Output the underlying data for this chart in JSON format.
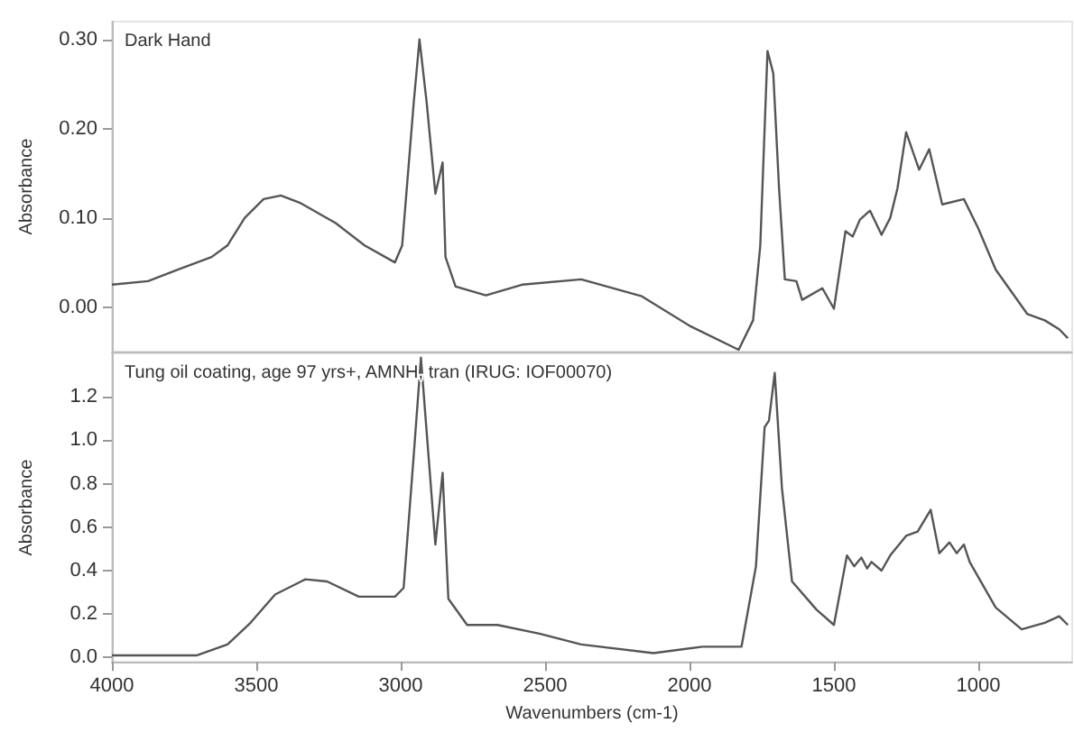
{
  "chart_data": [
    {
      "type": "line",
      "title": "Dark Hand",
      "ylabel": "Absorbance",
      "xlim": [
        4000,
        675
      ],
      "ylim": [
        -0.05,
        0.32
      ],
      "yticks": [
        {
          "value": 0,
          "label": "0.00"
        },
        {
          "value": 0.1,
          "label": "0.10"
        },
        {
          "value": 0.2,
          "label": "0.20"
        },
        {
          "value": 0.3,
          "label": "0.30"
        }
      ],
      "tick_labels": "y",
      "grid": false,
      "x": [
        4000,
        3875,
        3770,
        3655,
        3600,
        3540,
        3475,
        3415,
        3350,
        3225,
        3125,
        3020,
        2995,
        2955,
        2935,
        2910,
        2880,
        2855,
        2845,
        2810,
        2705,
        2580,
        2375,
        2165,
        2000,
        1830,
        1780,
        1755,
        1730,
        1710,
        1690,
        1670,
        1630,
        1610,
        1540,
        1500,
        1460,
        1435,
        1410,
        1375,
        1335,
        1305,
        1280,
        1250,
        1205,
        1170,
        1125,
        1050,
        1000,
        940,
        830,
        770,
        720,
        690
      ],
      "series": [
        {
          "color": "#555555",
          "values": [
            0.025,
            0.029,
            0.042,
            0.056,
            0.069,
            0.1,
            0.121,
            0.125,
            0.117,
            0.094,
            0.069,
            0.05,
            0.069,
            0.229,
            0.3,
            0.229,
            0.127,
            0.162,
            0.056,
            0.023,
            0.013,
            0.025,
            0.031,
            0.012,
            -0.021,
            -0.048,
            -0.015,
            0.069,
            0.287,
            0.262,
            0.133,
            0.031,
            0.029,
            0.008,
            0.021,
            -0.002,
            0.085,
            0.079,
            0.098,
            0.108,
            0.081,
            0.1,
            0.133,
            0.196,
            0.154,
            0.177,
            0.115,
            0.121,
            0.088,
            0.042,
            -0.008,
            -0.015,
            -0.025,
            -0.035
          ]
        }
      ]
    },
    {
      "type": "line",
      "title": "Tung oil coating, age 97 yrs+, AMNH, tran (IRUG: IOF00070)",
      "xlabel": "Wavenumbers (cm-1)",
      "ylabel": "Absorbance",
      "xlim": [
        4000,
        675
      ],
      "ylim": [
        -0.02,
        1.4
      ],
      "xticks": [
        4000,
        3500,
        3000,
        2500,
        2000,
        1500,
        1000
      ],
      "yticks": [
        {
          "value": 0,
          "label": "0.0"
        },
        {
          "value": 0.2,
          "label": "0.2"
        },
        {
          "value": 0.4,
          "label": "0.4"
        },
        {
          "value": 0.6,
          "label": "0.6"
        },
        {
          "value": 0.8,
          "label": "0.8"
        },
        {
          "value": 1,
          "label": "1.0"
        },
        {
          "value": 1.2,
          "label": "1.2"
        }
      ],
      "grid": false,
      "x": [
        4000,
        3705,
        3600,
        3520,
        3435,
        3345,
        3330,
        3255,
        3145,
        3020,
        2990,
        2955,
        2930,
        2880,
        2855,
        2835,
        2770,
        2665,
        2520,
        2375,
        2125,
        1955,
        1820,
        1770,
        1740,
        1725,
        1705,
        1680,
        1645,
        1560,
        1500,
        1455,
        1430,
        1405,
        1385,
        1370,
        1335,
        1305,
        1250,
        1210,
        1165,
        1135,
        1100,
        1075,
        1050,
        1030,
        940,
        850,
        770,
        720,
        690
      ],
      "series": [
        {
          "color": "#555555",
          "values": [
            0.01,
            0.01,
            0.06,
            0.16,
            0.29,
            0.35,
            0.36,
            0.35,
            0.28,
            0.28,
            0.32,
            0.93,
            1.38,
            0.52,
            0.85,
            0.27,
            0.15,
            0.15,
            0.11,
            0.06,
            0.02,
            0.05,
            0.05,
            0.42,
            1.06,
            1.09,
            1.31,
            0.78,
            0.35,
            0.22,
            0.15,
            0.47,
            0.42,
            0.46,
            0.41,
            0.44,
            0.4,
            0.47,
            0.56,
            0.58,
            0.68,
            0.48,
            0.53,
            0.48,
            0.52,
            0.44,
            0.23,
            0.13,
            0.16,
            0.19,
            0.15
          ]
        }
      ]
    }
  ]
}
